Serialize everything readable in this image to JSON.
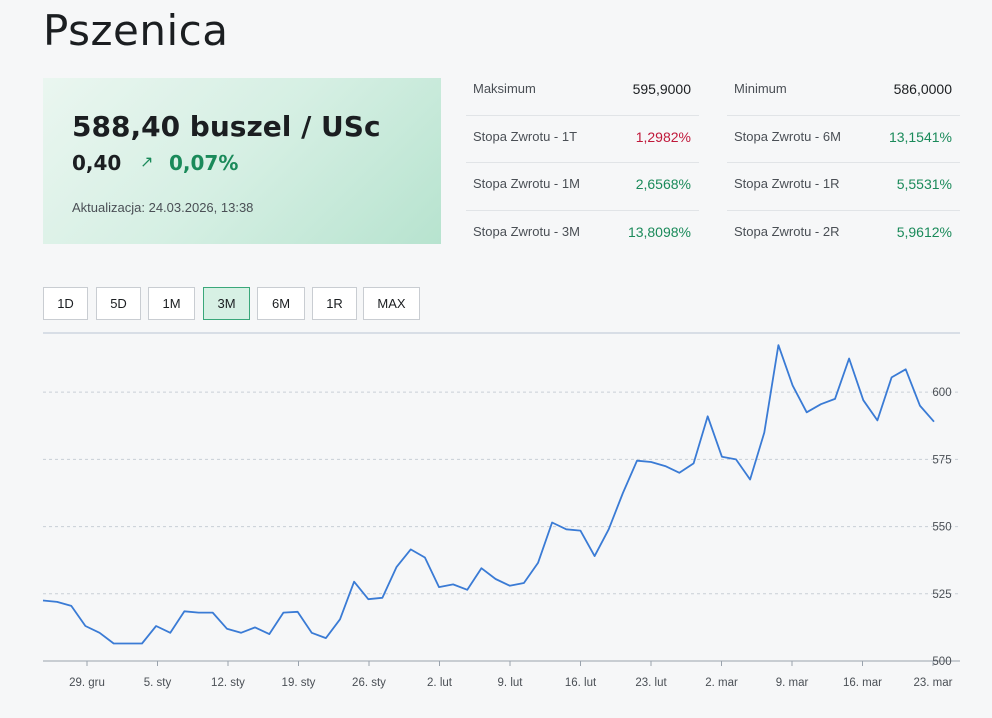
{
  "title": "Pszenica",
  "price_card": {
    "price": "588,40 buszel / USc",
    "change": "0,40",
    "change_arrow": "↗",
    "change_pct": "0,07%",
    "updated": "Aktualizacja: 24.03.2026, 13:38"
  },
  "stats": {
    "left": [
      {
        "label": "Maksimum",
        "value": "595,9000",
        "tone": "neutral"
      },
      {
        "label": "Stopa Zwrotu - 1T",
        "value": "1,2982%",
        "tone": "neg"
      },
      {
        "label": "Stopa Zwrotu - 1M",
        "value": "2,6568%",
        "tone": "pos"
      },
      {
        "label": "Stopa Zwrotu - 3M",
        "value": "13,8098%",
        "tone": "pos"
      }
    ],
    "right": [
      {
        "label": "Minimum",
        "value": "586,0000",
        "tone": "neutral"
      },
      {
        "label": "Stopa Zwrotu - 6M",
        "value": "13,1541%",
        "tone": "pos"
      },
      {
        "label": "Stopa Zwrotu - 1R",
        "value": "5,5531%",
        "tone": "pos"
      },
      {
        "label": "Stopa Zwrotu - 2R",
        "value": "5,9612%",
        "tone": "pos"
      }
    ]
  },
  "range_tabs": {
    "items": [
      "1D",
      "5D",
      "1M",
      "3M",
      "6M",
      "1R",
      "MAX"
    ],
    "active": "3M"
  },
  "colors": {
    "line": "#3a7bd5",
    "positive": "#1a8a5a",
    "negative": "#c0183a",
    "accent_bg": "#d7f0e4"
  },
  "chart_data": {
    "type": "line",
    "title": "",
    "xlabel": "",
    "ylabel": "",
    "ylim": [
      500,
      622
    ],
    "y_ticks": [
      500,
      525,
      550,
      575,
      600
    ],
    "grid": "horizontal dashed",
    "x_tick_labels": [
      "29. gru",
      "5. sty",
      "12. sty",
      "19. sty",
      "26. sty",
      "2. lut",
      "9. lut",
      "16. lut",
      "23. lut",
      "2. mar",
      "9. mar",
      "16. mar",
      "23. mar"
    ],
    "series": [
      {
        "values": [
          522.5,
          522,
          520.5,
          513,
          510.5,
          506.5,
          506.5,
          506.5,
          513,
          510.5,
          518.5,
          518,
          518,
          512,
          510.5,
          512.5,
          510,
          518,
          518.3,
          510.5,
          508.5,
          515.5,
          529.5,
          523,
          523.5,
          535,
          541.5,
          538.5,
          527.5,
          528.5,
          526.5,
          534.5,
          530.5,
          528,
          529,
          536.5,
          551.5,
          549,
          548.5,
          539,
          549,
          562.5,
          574.5,
          574,
          572.5,
          570,
          573.5,
          591,
          576,
          575,
          567.5,
          585,
          617.5,
          602.5,
          592.5,
          595.5,
          597.5,
          612.5,
          597,
          589.5,
          605.5,
          608.5,
          595,
          589
        ]
      }
    ]
  }
}
